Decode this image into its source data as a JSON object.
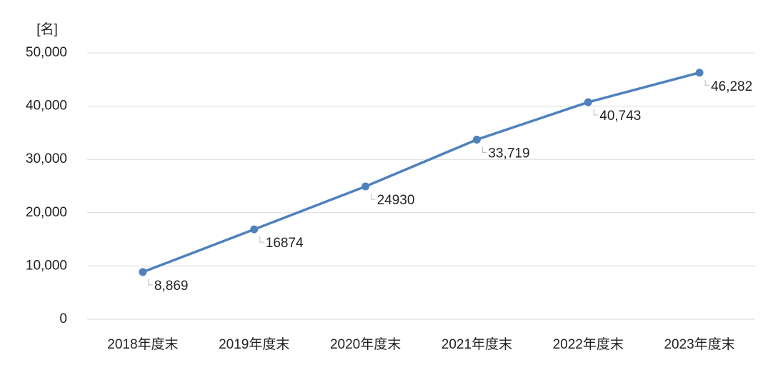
{
  "chart_data": {
    "type": "line",
    "y_label": "[名]",
    "categories": [
      "2018年度末",
      "2019年度末",
      "2020年度末",
      "2021年度末",
      "2022年度末",
      "2023年度末"
    ],
    "values": [
      8869,
      16874,
      24930,
      33719,
      40743,
      46282
    ],
    "value_labels": [
      "8,869",
      "16874",
      "24930",
      "33,719",
      "40,743",
      "46,282"
    ],
    "color": "#4f81bd",
    "ylim": [
      0,
      50000
    ],
    "yticks": [
      0,
      {
        "value": 10000,
        "label": "10,000"
      },
      {
        "value": 20000,
        "label": "20,000"
      },
      {
        "value": 30000,
        "label": "30,000"
      },
      {
        "value": 40000,
        "label": "40,000"
      },
      {
        "value": 50000,
        "label": "50,000"
      }
    ],
    "grid": true
  }
}
